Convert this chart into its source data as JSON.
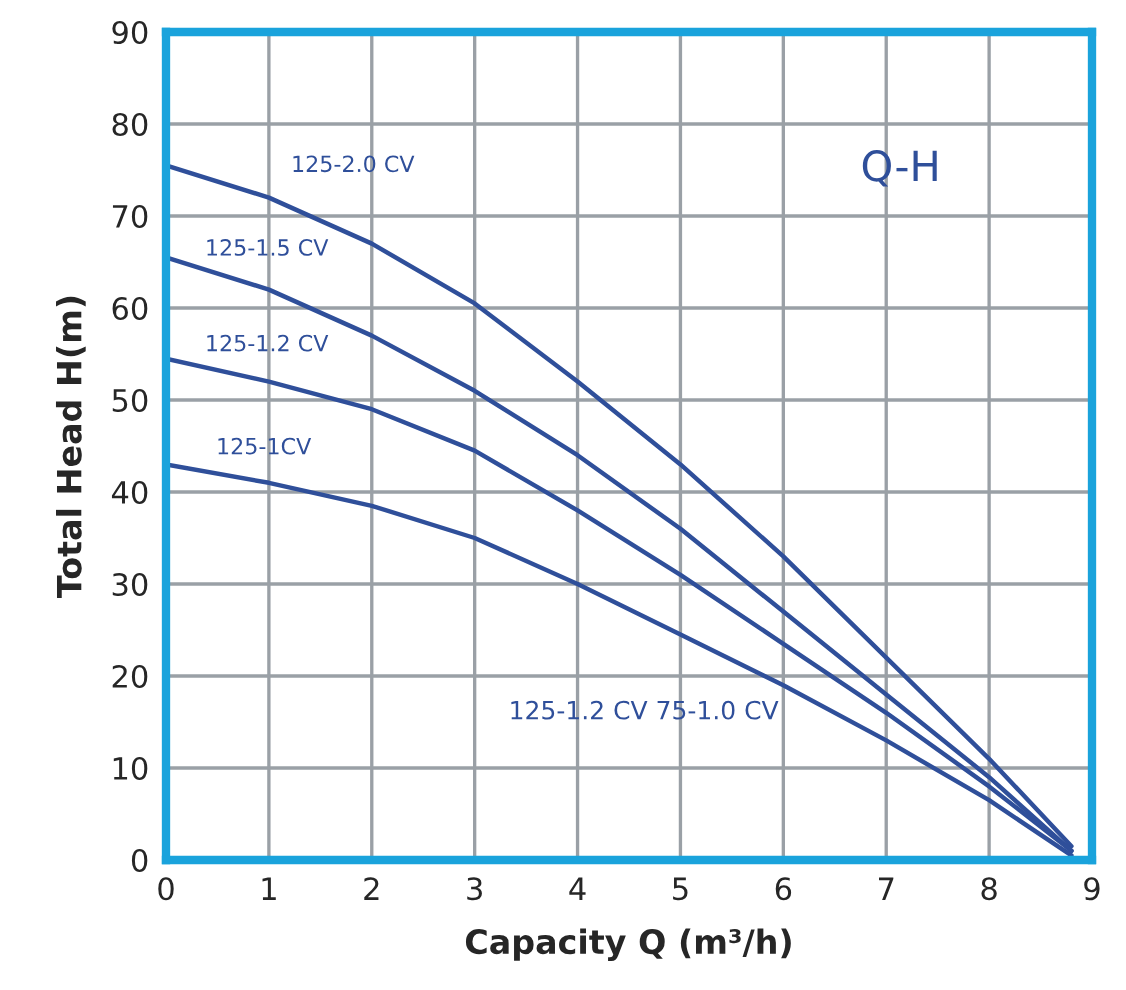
{
  "chart_data": {
    "type": "line",
    "xlabel": "Capacity Q (m³/h)",
    "ylabel": "Total Head H(m)",
    "xlim": [
      0,
      9
    ],
    "ylim": [
      0,
      90
    ],
    "xticks": [
      0,
      1,
      2,
      3,
      4,
      5,
      6,
      7,
      8,
      9
    ],
    "yticks": [
      0,
      10,
      20,
      30,
      40,
      50,
      60,
      70,
      80,
      90
    ],
    "grid": true,
    "marker": "none",
    "line_style": "solid",
    "annotations": [
      "Q-H",
      "125-1.2 CV 75-1.0 CV"
    ],
    "series": [
      {
        "name": "125-2.0 CV",
        "color": "#2f4f9a",
        "x": [
          0,
          1,
          2,
          3,
          4,
          5,
          6,
          7,
          8,
          8.8
        ],
        "values": [
          75.5,
          72,
          67,
          60.5,
          52,
          43,
          33,
          22,
          11,
          1.5
        ]
      },
      {
        "name": "125-1.5 CV",
        "color": "#2f4f9a",
        "x": [
          0,
          1,
          2,
          3,
          4,
          5,
          6,
          7,
          8,
          8.8
        ],
        "values": [
          65.5,
          62,
          57,
          51,
          44,
          36,
          27,
          18,
          9,
          1
        ]
      },
      {
        "name": "125-1.2 CV",
        "color": "#2f4f9a",
        "x": [
          0,
          1,
          2,
          3,
          4,
          5,
          6,
          7,
          8,
          8.8
        ],
        "values": [
          54.5,
          52,
          49,
          44.5,
          38,
          31,
          23.5,
          16,
          8,
          1
        ]
      },
      {
        "name": "125-1CV",
        "color": "#2f4f9a",
        "x": [
          0,
          1,
          2,
          3,
          4,
          5,
          6,
          7,
          8,
          8.8
        ],
        "values": [
          43,
          41,
          38.5,
          35,
          30,
          24.5,
          19,
          13,
          6.5,
          0.5
        ]
      }
    ]
  }
}
